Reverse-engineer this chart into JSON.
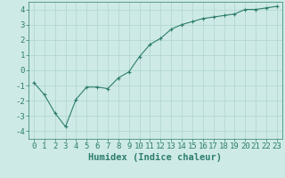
{
  "x": [
    0,
    1,
    2,
    3,
    4,
    5,
    6,
    7,
    8,
    9,
    10,
    11,
    12,
    13,
    14,
    15,
    16,
    17,
    18,
    19,
    20,
    21,
    22,
    23
  ],
  "y": [
    -0.8,
    -1.6,
    -2.8,
    -3.7,
    -1.9,
    -1.1,
    -1.1,
    -1.2,
    -0.5,
    -0.1,
    0.9,
    1.7,
    2.1,
    2.7,
    3.0,
    3.2,
    3.4,
    3.5,
    3.6,
    3.7,
    4.0,
    4.0,
    4.1,
    4.2
  ],
  "line_color": "#2d7d6e",
  "marker": "+",
  "marker_color": "#2d7d6e",
  "bg_color": "#ceeae6",
  "grid_color": "#aed4ce",
  "tick_color": "#2d7d6e",
  "xlabel": "Humidex (Indice chaleur)",
  "ylim": [
    -4.5,
    4.5
  ],
  "xlim": [
    -0.5,
    23.5
  ],
  "yticks": [
    -4,
    -3,
    -2,
    -1,
    0,
    1,
    2,
    3,
    4
  ],
  "xticks": [
    0,
    1,
    2,
    3,
    4,
    5,
    6,
    7,
    8,
    9,
    10,
    11,
    12,
    13,
    14,
    15,
    16,
    17,
    18,
    19,
    20,
    21,
    22,
    23
  ],
  "tick_fontsize": 6.5,
  "xlabel_fontsize": 7.5
}
